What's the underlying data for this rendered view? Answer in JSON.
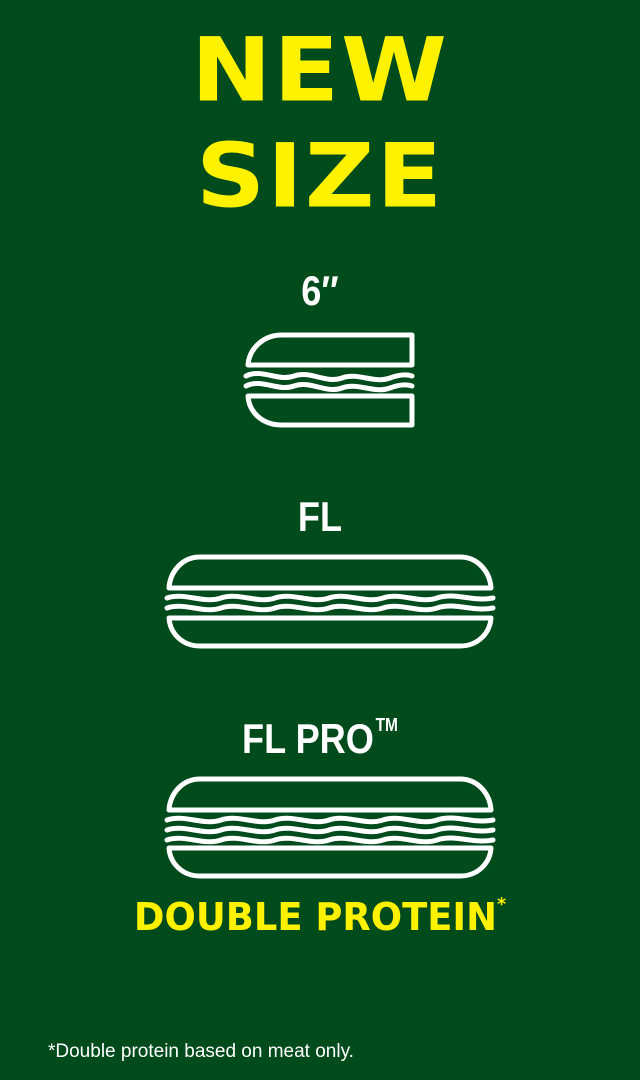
{
  "headline": {
    "line1": "NEW",
    "line2": "SIZE"
  },
  "sizes": [
    {
      "label": "6″",
      "icon": "sandwich-small-icon"
    },
    {
      "label": "FL",
      "icon": "sandwich-footlong-icon"
    },
    {
      "label": "FL PRO",
      "trademark": "TM",
      "icon": "sandwich-footlong-pro-icon"
    }
  ],
  "tagline": {
    "text": "DOUBLE PROTEIN",
    "asterisk": "*"
  },
  "footnote": "*Double protein based on meat only.",
  "colors": {
    "background": "#004b1c",
    "accent": "#fff200",
    "icon_stroke": "#ffffff"
  }
}
